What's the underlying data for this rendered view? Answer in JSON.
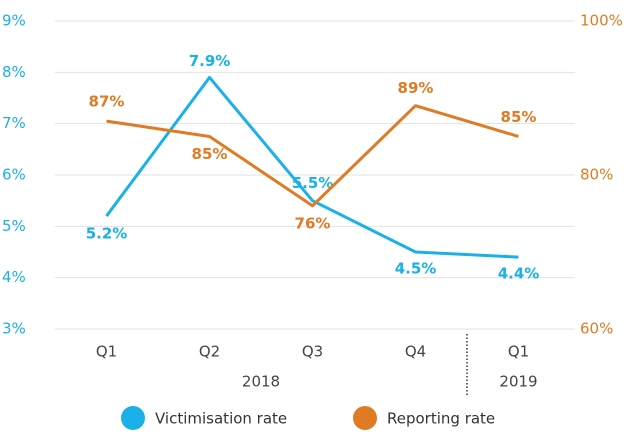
{
  "chart_data": {
    "type": "line",
    "categories": [
      "Q1",
      "Q2",
      "Q3",
      "Q4",
      "Q1"
    ],
    "year_labels": [
      "2018",
      "2019"
    ],
    "series": [
      {
        "name": "Victimisation rate",
        "color": "#1ab0e8",
        "values": [
          5.2,
          7.9,
          5.5,
          4.5,
          4.4
        ],
        "value_labels": [
          "5.2%",
          "7.9%",
          "5.5%",
          "4.5%",
          "4.4%"
        ]
      },
      {
        "name": "Reporting rate",
        "color": "#e07b24",
        "axis": "y2",
        "values": [
          87,
          85,
          76,
          89,
          85
        ],
        "value_labels": [
          "87%",
          "85%",
          "76%",
          "89%",
          "85%"
        ]
      }
    ],
    "ylim": [
      3,
      9
    ],
    "yticks": [
      {
        "value": 3,
        "label": "3%"
      },
      {
        "value": 4,
        "label": "4%"
      },
      {
        "value": 5,
        "label": "5%"
      },
      {
        "value": 6,
        "label": "6%"
      },
      {
        "value": 7,
        "label": "7%"
      },
      {
        "value": 8,
        "label": "8%"
      },
      {
        "value": 9,
        "label": "9%"
      }
    ],
    "y2lim": [
      60,
      100
    ],
    "y2ticks": [
      {
        "value": 60,
        "label": "60%"
      },
      {
        "value": 80,
        "label": "80%"
      },
      {
        "value": 100,
        "label": "100%"
      }
    ],
    "grid": true
  }
}
